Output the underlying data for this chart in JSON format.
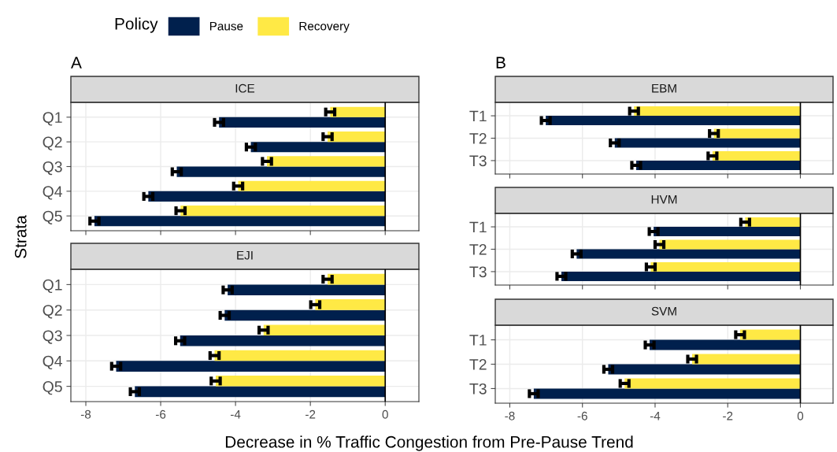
{
  "chart_data": [
    {
      "type": "bar",
      "orientation": "horizontal",
      "title": "ICE",
      "annotations": [
        "A"
      ],
      "ylabel": "Strata",
      "legend_title": "Policy",
      "legend": "top",
      "grid": true,
      "tick_labels": "y",
      "xlim": [
        -8.4,
        0.9
      ],
      "xticks": [
        -8,
        -6,
        -4,
        -2,
        0
      ],
      "categories": [
        "Q1",
        "Q2",
        "Q3",
        "Q4",
        "Q5"
      ],
      "ref_lines": [
        {
          "axis": "x",
          "value": 0,
          "color": "#000000"
        }
      ],
      "series": [
        {
          "name": "Pause",
          "color": "#00204d",
          "values": [
            -4.44,
            -3.59,
            -5.57,
            -6.33,
            -7.77
          ],
          "errors": [
            0.12,
            0.12,
            0.12,
            0.12,
            0.12
          ]
        },
        {
          "name": "Recovery",
          "color": "#ffe945",
          "values": [
            -1.47,
            -1.54,
            -3.16,
            -3.93,
            -5.47
          ],
          "errors": [
            0.12,
            0.12,
            0.12,
            0.12,
            0.12
          ]
        }
      ]
    },
    {
      "type": "bar",
      "orientation": "horizontal",
      "title": "EJI",
      "xlabel": "Decrease in % Traffic Congestion from Pre-Pause Trend",
      "grid": true,
      "xlim": [
        -8.4,
        0.9
      ],
      "xticks": [
        -8,
        -6,
        -4,
        -2,
        0
      ],
      "categories": [
        "Q1",
        "Q2",
        "Q3",
        "Q4",
        "Q5"
      ],
      "ref_lines": [
        {
          "axis": "x",
          "value": 0,
          "color": "#000000"
        }
      ],
      "series": [
        {
          "color": "#00204d",
          "values": [
            -4.21,
            -4.29,
            -5.48,
            -7.19,
            -6.69
          ],
          "errors": [
            0.12,
            0.12,
            0.12,
            0.12,
            0.12
          ]
        },
        {
          "color": "#ffe945",
          "values": [
            -1.54,
            -1.87,
            -3.25,
            -4.56,
            -4.53
          ],
          "errors": [
            0.12,
            0.12,
            0.12,
            0.12,
            0.12
          ]
        }
      ]
    },
    {
      "type": "bar",
      "orientation": "horizontal",
      "title": "EBM",
      "annotations": [
        "B"
      ],
      "grid": true,
      "tick_labels": "y",
      "xlim": [
        -8.4,
        0.9
      ],
      "xticks": [
        -8,
        -6,
        -4,
        -2,
        0
      ],
      "categories": [
        "T1",
        "T2",
        "T3"
      ],
      "ref_lines": [
        {
          "axis": "x",
          "value": 0,
          "color": "#000000"
        }
      ],
      "series": [
        {
          "color": "#00204d",
          "values": [
            -7.01,
            -5.11,
            -4.52
          ],
          "errors": [
            0.12,
            0.12,
            0.12
          ]
        },
        {
          "color": "#ffe945",
          "values": [
            -4.58,
            -2.38,
            -2.42
          ],
          "errors": [
            0.12,
            0.12,
            0.12
          ]
        }
      ]
    },
    {
      "type": "bar",
      "orientation": "horizontal",
      "title": "HVM",
      "grid": true,
      "tick_labels": "y",
      "xlim": [
        -8.4,
        0.9
      ],
      "xticks": [
        -8,
        -6,
        -4,
        -2,
        0
      ],
      "categories": [
        "T1",
        "T2",
        "T3"
      ],
      "ref_lines": [
        {
          "axis": "x",
          "value": 0,
          "color": "#000000"
        }
      ],
      "series": [
        {
          "color": "#00204d",
          "values": [
            -4.04,
            -6.16,
            -6.58
          ],
          "errors": [
            0.12,
            0.12,
            0.12
          ]
        },
        {
          "color": "#ffe945",
          "values": [
            -1.52,
            -3.88,
            -4.12
          ],
          "errors": [
            0.12,
            0.12,
            0.12
          ]
        }
      ]
    },
    {
      "type": "bar",
      "orientation": "horizontal",
      "title": "SVM",
      "grid": true,
      "xlim": [
        -8.4,
        0.9
      ],
      "xticks": [
        -8,
        -6,
        -4,
        -2,
        0
      ],
      "categories": [
        "T1",
        "T2",
        "T3"
      ],
      "ref_lines": [
        {
          "axis": "x",
          "value": 0,
          "color": "#000000"
        }
      ],
      "series": [
        {
          "color": "#00204d",
          "values": [
            -4.15,
            -5.29,
            -7.34
          ],
          "errors": [
            0.12,
            0.12,
            0.12
          ]
        },
        {
          "color": "#ffe945",
          "values": [
            -1.66,
            -2.98,
            -4.84
          ],
          "errors": [
            0.12,
            0.12,
            0.12
          ]
        }
      ]
    }
  ]
}
